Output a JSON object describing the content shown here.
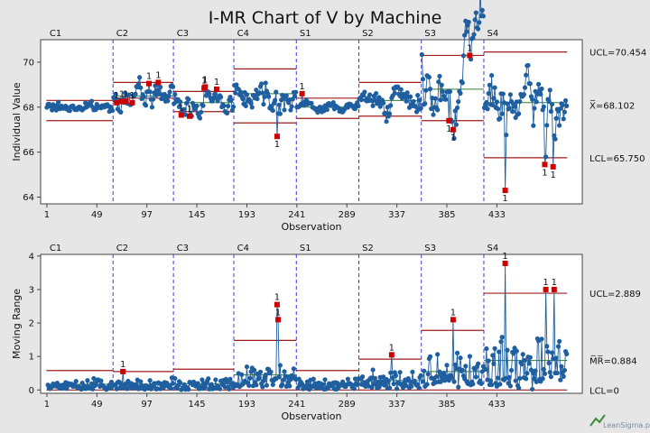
{
  "title": "I-MR Chart of V by Machine",
  "watermark": "LeanSigma.pl",
  "colors": {
    "background": "#e6e6e6",
    "plot_area": "#ffffff",
    "points": "#1f5fa0",
    "line": "#1f5fa0",
    "control_limit": "#a01c1c",
    "out_of_control": "#cc0000",
    "separator": "#3b3bd6"
  },
  "chart_data": [
    {
      "type": "line",
      "name": "Individual",
      "title": "I-MR Chart of V by Machine",
      "xlabel": "Observation",
      "ylabel": "Individual Value",
      "xlim": [
        -5,
        515
      ],
      "ylim": [
        63.7,
        71.0
      ],
      "xticks": [
        1,
        49,
        97,
        145,
        193,
        241,
        289,
        337,
        385,
        433
      ],
      "yticks": [
        64,
        66,
        68,
        70
      ],
      "grid": false,
      "group_labels": [
        "C1",
        "C2",
        "C3",
        "C4",
        "S1",
        "S2",
        "S3",
        "S4"
      ],
      "group_boundaries": [
        0,
        64,
        122,
        180,
        240,
        300,
        360,
        420,
        500
      ],
      "group_means": [
        68.0,
        68.5,
        68.2,
        68.6,
        68.0,
        68.3,
        68.8,
        68.2
      ],
      "group_sd": [
        0.15,
        0.32,
        0.3,
        0.42,
        0.15,
        0.38,
        0.9,
        0.7
      ],
      "control_limits": [
        {
          "ucl": 68.3,
          "lcl": 67.4
        },
        {
          "ucl": 69.1,
          "lcl": 68.4
        },
        {
          "ucl": 68.7,
          "lcl": 67.8
        },
        {
          "ucl": 69.7,
          "lcl": 67.3
        },
        {
          "ucl": 68.4,
          "lcl": 67.5
        },
        {
          "ucl": 69.1,
          "lcl": 67.6
        },
        {
          "ucl": 70.3,
          "lcl": 67.4
        },
        {
          "ucl": 70.454,
          "lcl": 65.75
        }
      ],
      "right_labels": [
        "UCL=70.454",
        "X̅=68.102",
        "LCL=65.750"
      ],
      "right_label_values": [
        70.454,
        68.102,
        65.75
      ],
      "special_points": [
        {
          "x": 68,
          "y": 68.2,
          "flag": "1"
        },
        {
          "x": 73,
          "y": 68.25,
          "flag": "1"
        },
        {
          "x": 77,
          "y": 68.25,
          "flag": "1"
        },
        {
          "x": 83,
          "y": 68.2,
          "flag": "1"
        },
        {
          "x": 99,
          "y": 69.05,
          "flag": "1"
        },
        {
          "x": 108,
          "y": 69.1,
          "flag": "1"
        },
        {
          "x": 130,
          "y": 67.65,
          "flag": "1"
        },
        {
          "x": 138,
          "y": 67.6,
          "flag": "1"
        },
        {
          "x": 152,
          "y": 68.85,
          "flag": "1"
        },
        {
          "x": 153,
          "y": 68.9,
          "flag": "1"
        },
        {
          "x": 164,
          "y": 68.8,
          "flag": "1"
        },
        {
          "x": 222,
          "y": 66.7,
          "flag": "1"
        },
        {
          "x": 246,
          "y": 68.6,
          "flag": "1"
        },
        {
          "x": 387,
          "y": 67.4,
          "flag": "1"
        },
        {
          "x": 391,
          "y": 67.0,
          "flag": "1"
        },
        {
          "x": 407,
          "y": 70.3,
          "flag": "1"
        },
        {
          "x": 441,
          "y": 64.3,
          "flag": "1"
        },
        {
          "x": 479,
          "y": 65.45,
          "flag": "1"
        },
        {
          "x": 487,
          "y": 65.35,
          "flag": "1"
        }
      ]
    },
    {
      "type": "line",
      "name": "Moving Range",
      "xlabel": "Observation",
      "ylabel": "Moving Range",
      "xlim": [
        -5,
        515
      ],
      "ylim": [
        -0.1,
        4.05
      ],
      "xticks": [
        1,
        49,
        97,
        145,
        193,
        241,
        289,
        337,
        385,
        433
      ],
      "yticks": [
        0,
        1,
        2,
        3,
        4
      ],
      "grid": false,
      "group_labels": [
        "C1",
        "C2",
        "C3",
        "C4",
        "S1",
        "S2",
        "S3",
        "S4"
      ],
      "group_boundaries": [
        0,
        64,
        122,
        180,
        240,
        300,
        360,
        420,
        500
      ],
      "group_mr_mean": [
        0.17,
        0.17,
        0.18,
        0.45,
        0.17,
        0.28,
        0.55,
        0.88
      ],
      "control_limits": [
        {
          "ucl": 0.58,
          "lcl": 0
        },
        {
          "ucl": 0.55,
          "lcl": 0
        },
        {
          "ucl": 0.62,
          "lcl": 0
        },
        {
          "ucl": 1.48,
          "lcl": 0
        },
        {
          "ucl": 0.58,
          "lcl": 0
        },
        {
          "ucl": 0.92,
          "lcl": 0
        },
        {
          "ucl": 1.78,
          "lcl": 0
        },
        {
          "ucl": 2.889,
          "lcl": 0
        }
      ],
      "right_labels": [
        "UCL=2.889",
        "M̅R̅=0.884",
        "LCL=0"
      ],
      "right_label_values": [
        2.889,
        0.884,
        0
      ],
      "special_points": [
        {
          "x": 74,
          "y": 0.55,
          "flag": "1"
        },
        {
          "x": 222,
          "y": 2.55,
          "flag": "1"
        },
        {
          "x": 223,
          "y": 2.1,
          "flag": "1"
        },
        {
          "x": 332,
          "y": 1.05,
          "flag": "1"
        },
        {
          "x": 391,
          "y": 2.1,
          "flag": "1"
        },
        {
          "x": 441,
          "y": 3.78,
          "flag": "1"
        },
        {
          "x": 480,
          "y": 3.0,
          "flag": "1"
        },
        {
          "x": 488,
          "y": 3.0,
          "flag": "1"
        }
      ]
    }
  ]
}
